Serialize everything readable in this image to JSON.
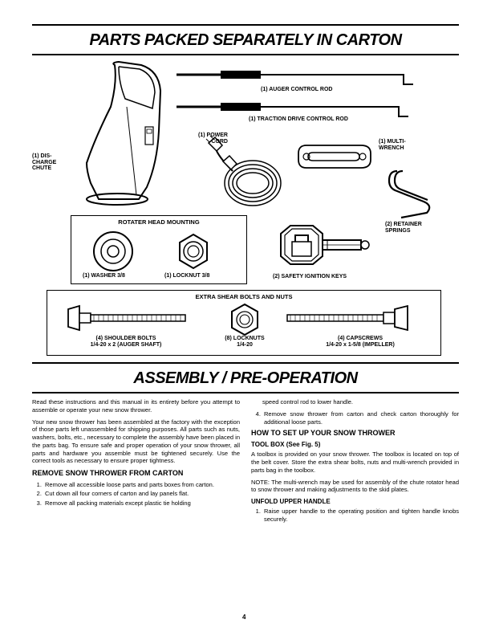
{
  "titles": {
    "parts": "PARTS PACKED SEPARATELY IN CARTON",
    "assembly": "ASSEMBLY / PRE-OPERATION"
  },
  "labels": {
    "auger_rod": "(1) AUGER CONTROL ROD",
    "traction_rod": "(1) TRACTION DRIVE CONTROL ROD",
    "power_cord": "(1) POWER\nCORD",
    "multi_wrench": "(1) MULTI-\nWRENCH",
    "discharge_chute": "(1) DIS-\nCHARGE\nCHUTE",
    "retainer_springs": "(2) RETAINER\nSPRINGS",
    "safety_keys": "(2) SAFETY IGNITION KEYS",
    "washer": "(1) WASHER  3/8",
    "locknut": "(1) LOCKNUT  3/8",
    "shoulder_bolts": "(4) SHOULDER BOLTS\n1/4-20 x 2 (AUGER SHAFT)",
    "locknuts_8": "(8) LOCKNUTS\n1/4-20",
    "capscrews": "(4) CAPSCREWS\n1/4-20 x 1-5/8 (IMPELLER)"
  },
  "box_titles": {
    "rotater": "ROTATER HEAD MOUNTING",
    "shear": "EXTRA SHEAR BOLTS AND NUTS"
  },
  "text": {
    "intro1": "Read these instructions and this manual in its entirety before you attempt to assemble or operate your new snow thrower.",
    "intro2": "Your new snow thrower has been assembled at the factory with the exception of those parts left unassembled for shipping purposes. All parts such as nuts, washers, bolts, etc., necessary to complete the assembly have been placed in the parts bag. To ensure safe and proper operation of your snow thrower, all parts and hardware you assemble must be tightened securely. Use the correct tools as necessary to ensure proper tightness.",
    "remove_h": "REMOVE SNOW THROWER FROM CARTON",
    "remove_1": "Remove all accessible loose parts and parts boxes from carton.",
    "remove_2": "Cut down all four corners of carton and lay panels flat.",
    "remove_3": "Remove all packing materials except plastic tie holding",
    "cont_3": "speed control rod to lower handle.",
    "remove_4": "Remove snow thrower from carton and check carton thoroughly for additional loose parts.",
    "setup_h": "HOW TO SET UP YOUR SNOW THROWER",
    "toolbox_h": "TOOL BOX (See Fig. 5)",
    "toolbox_p": "A toolbox is provided on your snow thrower. The toolbox is located on top of the belt cover. Store the extra shear bolts, nuts and multi-wrench provided in parts bag in the toolbox.",
    "note": "NOTE: The multi-wrench may be used for assembly of the chute rotator head to snow thrower and making adjustments to the skid plates.",
    "unfold_h": "UNFOLD UPPER HANDLE",
    "unfold_1": "Raise upper handle to the operating position and tighten handle knobs securely."
  },
  "pagenum": "4",
  "colors": {
    "stroke": "#000000",
    "fill": "#ffffff"
  }
}
